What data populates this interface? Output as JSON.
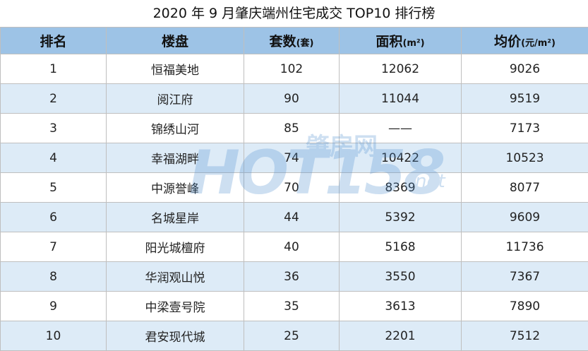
{
  "title": "2020 年 9 月肇庆端州住宅成交 TOP10 排行榜",
  "columns": [
    {
      "label": "排名",
      "unit": ""
    },
    {
      "label": "楼盘",
      "unit": ""
    },
    {
      "label": "套数",
      "unit": "(套)"
    },
    {
      "label": "面积",
      "unit": "(m²)"
    },
    {
      "label": "均价",
      "unit": "(元/m²)"
    }
  ],
  "rows": [
    {
      "rank": "1",
      "name": "恒福美地",
      "units": "102",
      "area": "12062",
      "price": "9026"
    },
    {
      "rank": "2",
      "name": "阅江府",
      "units": "90",
      "area": "11044",
      "price": "9519"
    },
    {
      "rank": "3",
      "name": "锦绣山河",
      "units": "85",
      "area": "——",
      "price": "7173"
    },
    {
      "rank": "4",
      "name": "幸福湖畔",
      "units": "74",
      "area": "10422",
      "price": "10523"
    },
    {
      "rank": "5",
      "name": "中源誉峰",
      "units": "70",
      "area": "8369",
      "price": "8077"
    },
    {
      "rank": "6",
      "name": "名城星岸",
      "units": "44",
      "area": "5392",
      "price": "9609"
    },
    {
      "rank": "7",
      "name": "阳光城檀府",
      "units": "40",
      "area": "5168",
      "price": "11736"
    },
    {
      "rank": "8",
      "name": "华润观山悦",
      "units": "36",
      "area": "3550",
      "price": "7367"
    },
    {
      "rank": "9",
      "name": "中梁壹号院",
      "units": "35",
      "area": "3613",
      "price": "7890"
    },
    {
      "rank": "10",
      "name": "君安现代城",
      "units": "25",
      "area": "2201",
      "price": "7512"
    }
  ],
  "watermark": {
    "logo": "HOT158",
    "cn": "肇房网",
    "suffix": "net"
  }
}
